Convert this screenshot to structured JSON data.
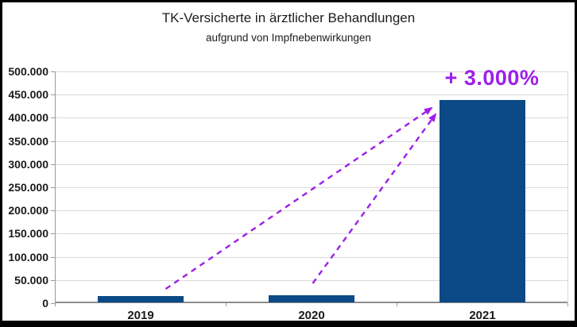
{
  "window": {
    "background": "#ffffff",
    "border_color": "#000000"
  },
  "chart": {
    "title": "TK-Versicherte in ärztlicher Behandlungen",
    "subtitle": "aufgrund von Impfnebenwirkungen",
    "annotation": {
      "text": "+ 3.000%",
      "color": "#9d1fe8"
    }
  },
  "chart_data": {
    "type": "bar",
    "title": "TK-Versicherte in ärztlicher Behandlungen",
    "subtitle": "aufgrund von Impfnebenwirkungen",
    "categories": [
      "2019",
      "2020",
      "2021"
    ],
    "values": [
      14000,
      15000,
      437000
    ],
    "xlabel": "",
    "ylabel": "",
    "ylim": [
      0,
      500000
    ],
    "ytick_interval": 50000,
    "ytick_labels": [
      "500.000",
      "450.000",
      "400.000",
      "350.000",
      "300.000",
      "250.000",
      "200.000",
      "150.000",
      "100.000",
      "50.000",
      "0"
    ],
    "grid": true,
    "legend": "none",
    "bar_color": "#0b4a87",
    "annotations": [
      {
        "text": "+ 3.000%",
        "color": "#9d1fe8",
        "style": "dashed-arrows",
        "arrows_from": [
          "2019",
          "2020"
        ],
        "arrow_to": "2021"
      }
    ]
  },
  "colors": {
    "gridline": "#d9d9d9",
    "axis": "#9a9a9a",
    "baseline": "#8c8c8c",
    "text": "#1a1a1a",
    "bar": "#0b4a87",
    "arrow": "#9d1fe8"
  }
}
